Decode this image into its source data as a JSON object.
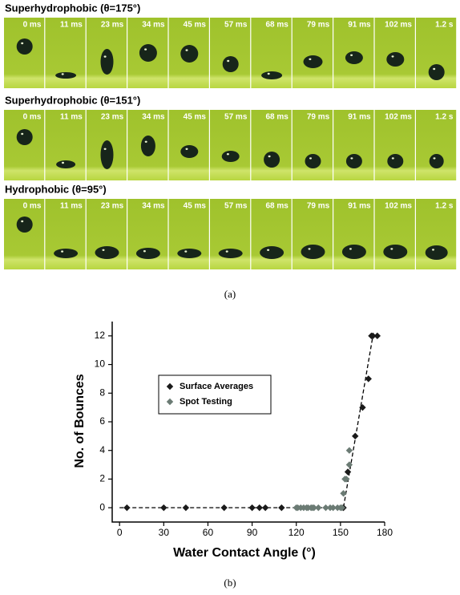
{
  "figure_a": {
    "rows": [
      {
        "title": "Superhydrophobic (θ=175°)"
      },
      {
        "title": "Superhydrophobic (θ=151°)"
      },
      {
        "title": "Hydrophobic (θ=95°)"
      }
    ],
    "frame_labels": [
      "0 ms",
      "11 ms",
      "23 ms",
      "34 ms",
      "45 ms",
      "57 ms",
      "68 ms",
      "79 ms",
      "91 ms",
      "102 ms",
      "1.2 s"
    ],
    "caption": "(a)"
  },
  "chart_data": {
    "type": "scatter",
    "xlabel": "Water Contact Angle (°)",
    "ylabel": "No. of Bounces",
    "xlim": [
      -5,
      180
    ],
    "ylim": [
      -1,
      13
    ],
    "xticks": [
      0,
      30,
      60,
      90,
      120,
      150,
      180
    ],
    "yticks": [
      0,
      2,
      4,
      6,
      8,
      10,
      12
    ],
    "legend": "upper left",
    "series": [
      {
        "name": "Surface Averages",
        "color": "#1a1a1a",
        "x": [
          5,
          30,
          45,
          71,
          90,
          95,
          99,
          110,
          152,
          155,
          160,
          165,
          169,
          171,
          172,
          175
        ],
        "values": [
          0,
          0,
          0,
          0,
          0,
          0,
          0,
          0,
          0,
          2.5,
          5,
          7,
          9,
          12,
          12,
          12
        ]
      },
      {
        "name": "Spot Testing",
        "color": "#6b7b74",
        "x": [
          120,
          121,
          123,
          125,
          127,
          128,
          130,
          131,
          132,
          135,
          140,
          143,
          145,
          148,
          150,
          151,
          152,
          153,
          154,
          156,
          156
        ],
        "values": [
          0,
          0,
          0,
          0,
          0,
          0,
          0,
          0,
          0,
          0,
          0,
          0,
          0,
          0,
          0,
          0,
          1,
          2,
          2,
          3,
          4
        ]
      }
    ],
    "trend_line": {
      "x": [
        0,
        152,
        172
      ],
      "values": [
        0,
        0,
        12
      ]
    },
    "caption": "(b)"
  }
}
